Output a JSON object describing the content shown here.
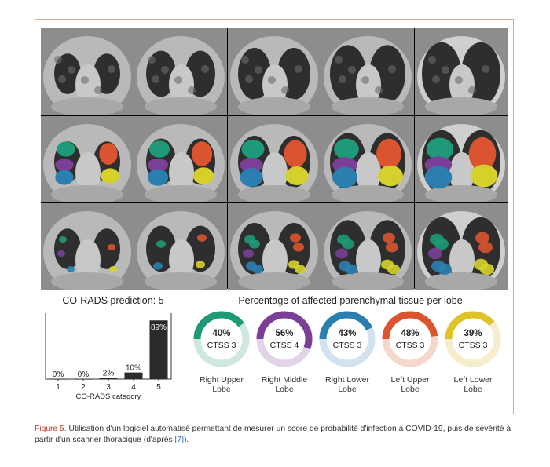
{
  "figure": {
    "bar_title": "CO-RADS prediction: 5",
    "percent_title": "Percentage of affected parenchymal tissue per lobe"
  },
  "chart_data": {
    "type": "bar",
    "title": "CO-RADS prediction: 5",
    "categories": [
      "1",
      "2",
      "3",
      "4",
      "5"
    ],
    "values": [
      0,
      0,
      2,
      10,
      89
    ],
    "value_labels": [
      "0%",
      "0%",
      "2%",
      "10%",
      "89%"
    ],
    "xlabel": "CO-RADS category",
    "ylim": [
      0,
      100
    ],
    "bar_color": "#2b2b2b",
    "grid": false
  },
  "lobes": [
    {
      "name": "Right Upper Lobe",
      "label_line1": "Right Upper",
      "label_line2": "Lobe",
      "percent": 40,
      "percent_label": "40%",
      "ctss": "CTSS 3",
      "color": "#1e9a78",
      "track": "#cfe8df"
    },
    {
      "name": "Right Middle Lobe",
      "label_line1": "Right Middle",
      "label_line2": "Lobe",
      "percent": 56,
      "percent_label": "56%",
      "ctss": "CTSS 4",
      "color": "#7b3f98",
      "track": "#e2d3ea"
    },
    {
      "name": "Right Lower Lobe",
      "label_line1": "Right Lower",
      "label_line2": "Lobe",
      "percent": 43,
      "percent_label": "43%",
      "ctss": "CTSS 3",
      "color": "#2a7fb0",
      "track": "#d2e3ef"
    },
    {
      "name": "Left Upper Lobe",
      "label_line1": "Left Upper",
      "label_line2": "Lobe",
      "percent": 48,
      "percent_label": "48%",
      "ctss": "CTSS 3",
      "color": "#d9542f",
      "track": "#f4d8cc"
    },
    {
      "name": "Left Lower Lobe",
      "label_line1": "Left Lower",
      "label_line2": "Lobe",
      "percent": 39,
      "percent_label": "39%",
      "ctss": "CTSS 3",
      "color": "#e0c229",
      "track": "#f5eecc"
    }
  ],
  "segmentation_colors": {
    "right_upper": "#1e9a78",
    "right_middle": "#7b3f98",
    "right_lower": "#2a7fb0",
    "left_upper": "#d9542f",
    "left_lower": "#d6d12a"
  },
  "caption": {
    "figure_label": "Figure 5.",
    "text": " Utilisation d'un logiciel automatisé permettant de mesurer un score de probabilité d'infection à COVID-19, puis de sévérité à partir d'un scanner thoracique (d'après ",
    "ref": "[7]",
    "end": ")."
  }
}
